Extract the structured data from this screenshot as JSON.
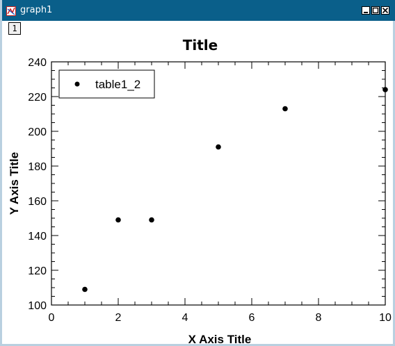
{
  "window": {
    "title": "graph1",
    "tab_label": "1",
    "titlebar_color": "#0a5f8a"
  },
  "icons": {
    "app": "graph-window-icon",
    "minimize": "minimize-icon",
    "maximize": "maximize-icon",
    "close": "close-icon"
  },
  "chart_data": {
    "type": "scatter",
    "title": "Title",
    "xlabel": "X Axis Title",
    "ylabel": "Y Axis Title",
    "xlim": [
      0,
      10
    ],
    "ylim": [
      100,
      240
    ],
    "xticks": [
      0,
      2,
      4,
      6,
      8,
      10
    ],
    "yticks": [
      100,
      120,
      140,
      160,
      180,
      200,
      220,
      240
    ],
    "legend_position": "top-left",
    "grid": false,
    "series": [
      {
        "name": "table1_2",
        "color": "#000000",
        "x": [
          1,
          2,
          3,
          5,
          7,
          10
        ],
        "y": [
          109,
          149,
          149,
          191,
          213,
          224
        ]
      }
    ]
  }
}
